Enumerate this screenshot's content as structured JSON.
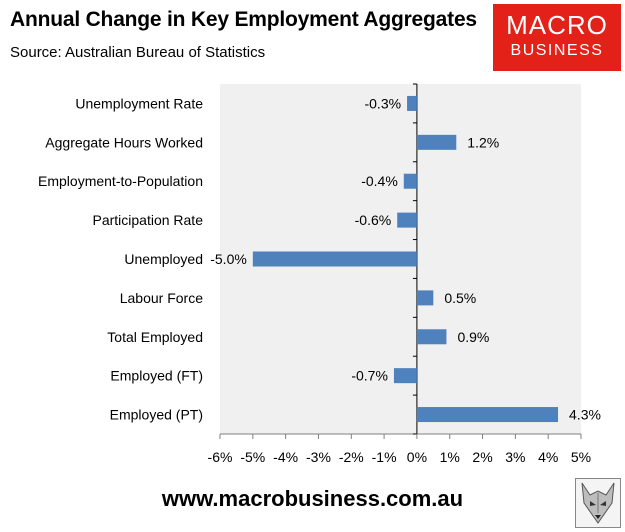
{
  "header": {
    "title": "Annual Change in Key Employment Aggregates",
    "subtitle": "Source: Australian Bureau of Statistics"
  },
  "logo": {
    "line1": "MACRO",
    "line2": "BUSINESS",
    "background_color": "#e32119",
    "text_color": "#ffffff"
  },
  "footer": {
    "url": "www.macrobusiness.com.au",
    "icon": "fox-icon"
  },
  "chart_data": {
    "type": "bar",
    "orientation": "horizontal",
    "title": "Annual Change in Key Employment Aggregates",
    "subtitle": "Source: Australian Bureau of Statistics",
    "categories": [
      "Unemployment Rate",
      "Aggregate Hours Worked",
      "Employment-to-Population",
      "Participation Rate",
      "Unemployed",
      "Labour Force",
      "Total Employed",
      "Employed (FT)",
      "Employed (PT)"
    ],
    "values": [
      -0.3,
      1.2,
      -0.4,
      -0.6,
      -5.0,
      0.5,
      0.9,
      -0.7,
      4.3
    ],
    "data_labels": [
      "-0.3%",
      "1.2%",
      "-0.4%",
      "-0.6%",
      "-5.0%",
      "0.5%",
      "0.9%",
      "-0.7%",
      "4.3%"
    ],
    "xlim": [
      -6,
      5
    ],
    "xticks": [
      -6,
      -5,
      -4,
      -3,
      -2,
      -1,
      0,
      1,
      2,
      3,
      4,
      5
    ],
    "xtick_labels": [
      "-6%",
      "-5%",
      "-4%",
      "-3%",
      "-2%",
      "-1%",
      "0%",
      "1%",
      "2%",
      "3%",
      "4%",
      "5%"
    ],
    "xlabel": "",
    "ylabel": "",
    "grid": false,
    "legend": "none",
    "bar_color": "#4f81bd",
    "plot_background": "#f0f0f0"
  }
}
